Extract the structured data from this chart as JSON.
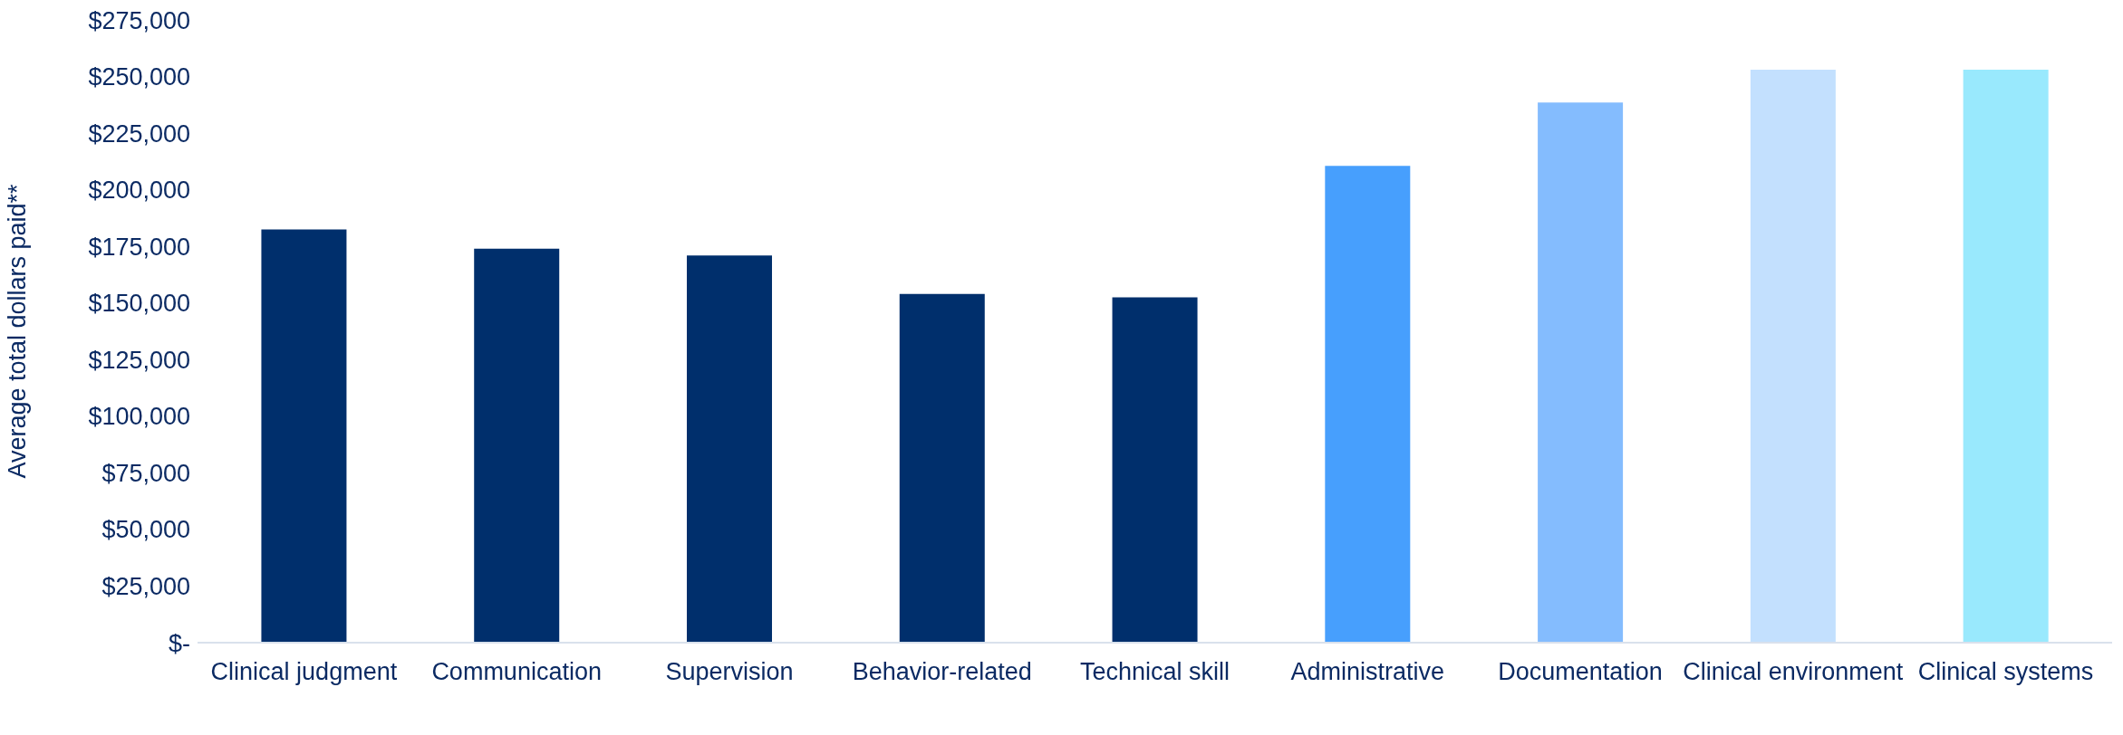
{
  "chart_data": {
    "type": "bar",
    "ylabel": "Average total dollars paid**",
    "categories": [
      "Clinical judgment",
      "Communication",
      "Supervision",
      "Behavior-related",
      "Technical skill",
      "Administrative",
      "Documentation",
      "Clinical environment",
      "Clinical systems"
    ],
    "values": [
      182500,
      174000,
      171000,
      154000,
      152500,
      210500,
      238500,
      253000,
      253000
    ],
    "colors": [
      "#002f6c",
      "#002f6c",
      "#002f6c",
      "#002f6c",
      "#002f6c",
      "#479ffd",
      "#84bcfe",
      "#c3e0fe",
      "#99e9fd"
    ],
    "ylim": [
      0,
      275000
    ],
    "yticks": [
      {
        "value": 0,
        "label": "$-"
      },
      {
        "value": 25000,
        "label": "$25,000"
      },
      {
        "value": 50000,
        "label": "$50,000"
      },
      {
        "value": 75000,
        "label": "$75,000"
      },
      {
        "value": 100000,
        "label": "$100,000"
      },
      {
        "value": 125000,
        "label": "$125,000"
      },
      {
        "value": 150000,
        "label": "$150,000"
      },
      {
        "value": 175000,
        "label": "$175,000"
      },
      {
        "value": 200000,
        "label": "$200,000"
      },
      {
        "value": 225000,
        "label": "$225,000"
      },
      {
        "value": 250000,
        "label": "$250,000"
      },
      {
        "value": 275000,
        "label": "$275,000"
      }
    ],
    "grid": false,
    "legend": false
  }
}
